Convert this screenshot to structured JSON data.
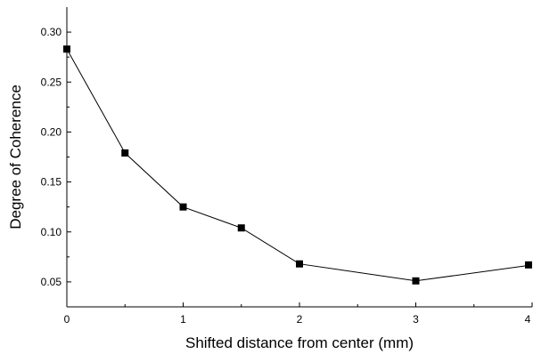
{
  "chart_data": {
    "type": "line",
    "title": "",
    "xlabel": "Shifted distance from center (mm)",
    "ylabel": "Degree of Coherence",
    "xlim": [
      0,
      4
    ],
    "ylim": [
      0.025,
      0.325
    ],
    "x_ticks": [
      0,
      1,
      2,
      3,
      4
    ],
    "y_ticks": [
      0.05,
      0.1,
      0.15,
      0.2,
      0.25,
      0.3
    ],
    "x_tick_labels": [
      "0",
      "1",
      "2",
      "3",
      "4"
    ],
    "y_tick_labels": [
      "0.05",
      "0.10",
      "0.15",
      "0.20",
      "0.25",
      "0.30"
    ],
    "grid": false,
    "legend": "none",
    "series": [
      {
        "marker": "square",
        "color": "#000000",
        "x": [
          0,
          0.5,
          1,
          1.5,
          2,
          3,
          4
        ],
        "y": [
          0.283,
          0.179,
          0.125,
          0.104,
          0.068,
          0.051,
          0.067
        ]
      }
    ]
  }
}
